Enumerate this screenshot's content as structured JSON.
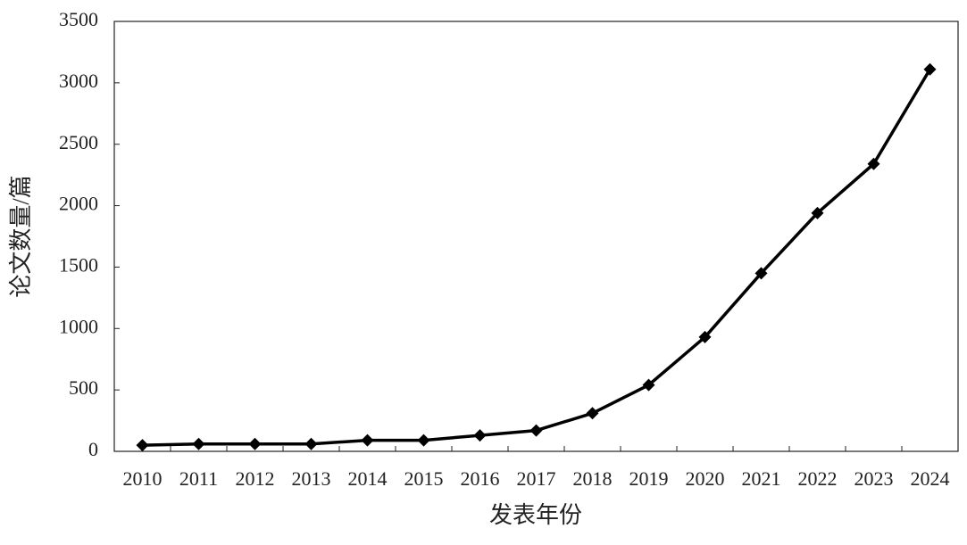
{
  "chart_data": {
    "type": "line",
    "x_label": "发表年份",
    "y_label": "论文数量/篇",
    "categories": [
      "2010",
      "2011",
      "2012",
      "2013",
      "2014",
      "2015",
      "2016",
      "2017",
      "2018",
      "2019",
      "2020",
      "2021",
      "2022",
      "2023",
      "2024"
    ],
    "values": [
      50,
      60,
      60,
      60,
      90,
      90,
      130,
      170,
      310,
      540,
      930,
      1450,
      1940,
      2340,
      3110
    ],
    "color": "#000000",
    "ylim": [
      0,
      3500
    ],
    "yticks": [
      0,
      500,
      1000,
      1500,
      2000,
      2500,
      3000,
      3500
    ]
  }
}
